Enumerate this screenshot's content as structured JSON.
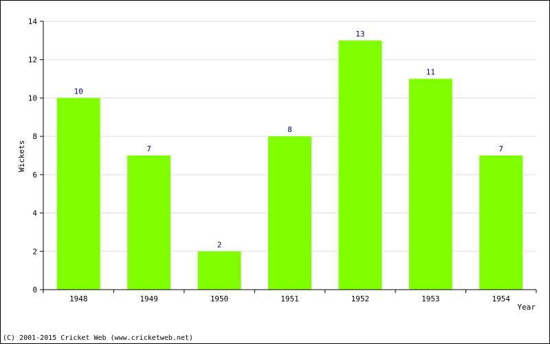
{
  "chart_data": {
    "type": "bar",
    "categories": [
      "1948",
      "1949",
      "1950",
      "1951",
      "1952",
      "1953",
      "1954"
    ],
    "values": [
      10,
      7,
      2,
      8,
      13,
      11,
      7
    ],
    "data_labels": [
      "10",
      "7",
      "2",
      "8",
      "13",
      "11",
      "7"
    ],
    "title": "",
    "xlabel": "Year",
    "ylabel": "Wickets",
    "ylim": [
      0,
      14
    ],
    "yticks": [
      0,
      2,
      4,
      6,
      8,
      10,
      12,
      14
    ],
    "grid": true,
    "legend": "none",
    "colors": {
      "bar": "#80ff00",
      "grid": "#dddddd",
      "data_label": "#000080",
      "axis": "#000000"
    }
  },
  "footer": {
    "copyright": "(C) 2001-2015 Cricket Web (www.cricketweb.net)"
  }
}
